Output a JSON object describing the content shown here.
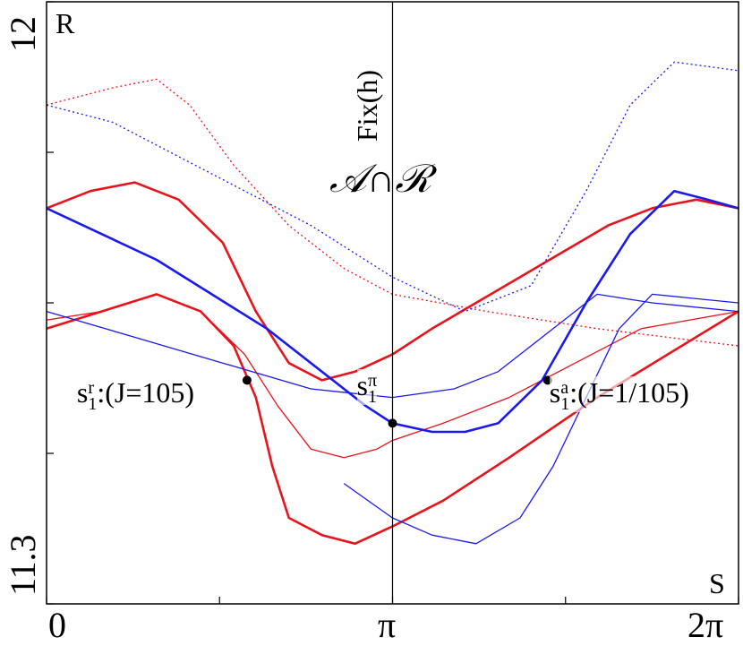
{
  "chart_data": {
    "type": "scatter",
    "xlim": [
      0,
      6.2832
    ],
    "ylim": [
      11.3,
      12.0
    ],
    "xticks": [
      0,
      3.1416,
      6.2832
    ],
    "x_tick_labels": [
      "0",
      "π",
      "2π"
    ],
    "yticks": [
      11.3,
      12.0
    ],
    "y_tick_labels": [
      "11.3",
      "12"
    ],
    "axis_corner_labels": {
      "y": "R",
      "x": "S"
    },
    "vertical_line": {
      "x": 3.1416,
      "label": "Fix(h)"
    },
    "center_label": "𝒜∩ℛ",
    "colors": {
      "repelling": "#e8141c",
      "attracting": "#1a1aee",
      "line": "#000000"
    },
    "series": [
      {
        "color": "#e8141c",
        "values_xy": [
          [
            0,
            11.76
          ],
          [
            0.4,
            11.78
          ],
          [
            0.8,
            11.79
          ],
          [
            1.2,
            11.77
          ],
          [
            1.6,
            11.72
          ],
          [
            1.9,
            11.64
          ],
          [
            2.2,
            11.58
          ],
          [
            2.5,
            11.56
          ],
          [
            2.8,
            11.57
          ],
          [
            3.14,
            11.59
          ],
          [
            3.5,
            11.62
          ],
          [
            3.9,
            11.65
          ],
          [
            4.3,
            11.68
          ],
          [
            4.7,
            11.71
          ],
          [
            5.1,
            11.74
          ],
          [
            5.5,
            11.76
          ],
          [
            5.9,
            11.77
          ],
          [
            6.28,
            11.76
          ]
        ]
      },
      {
        "color": "#e8141c",
        "values_xy": [
          [
            0,
            11.63
          ],
          [
            0.5,
            11.64
          ],
          [
            1.0,
            11.66
          ],
          [
            1.4,
            11.64
          ],
          [
            1.8,
            11.59
          ],
          [
            2.1,
            11.53
          ],
          [
            2.4,
            11.48
          ],
          [
            2.7,
            11.47
          ],
          [
            3.0,
            11.48
          ],
          [
            3.14,
            11.49
          ],
          [
            3.6,
            11.51
          ],
          [
            4.2,
            11.54
          ],
          [
            4.8,
            11.58
          ],
          [
            5.4,
            11.62
          ],
          [
            6.28,
            11.64
          ]
        ]
      },
      {
        "color": "#e8141c",
        "values_xy": [
          [
            0,
            11.62
          ],
          [
            0.5,
            11.64
          ],
          [
            1.0,
            11.66
          ],
          [
            1.4,
            11.64
          ],
          [
            1.7,
            11.6
          ],
          [
            1.9,
            11.54
          ],
          [
            2.05,
            11.46
          ],
          [
            2.2,
            11.4
          ],
          [
            2.5,
            11.38
          ],
          [
            2.8,
            11.37
          ],
          [
            3.14,
            11.39
          ],
          [
            3.6,
            11.42
          ],
          [
            4.2,
            11.47
          ],
          [
            5.0,
            11.54
          ],
          [
            6.28,
            11.64
          ]
        ]
      },
      {
        "color": "#e8141c",
        "values_xy": [
          [
            0,
            11.88
          ],
          [
            0.6,
            11.9
          ],
          [
            1.0,
            11.91
          ],
          [
            1.3,
            11.88
          ],
          [
            1.7,
            11.81
          ],
          [
            2.2,
            11.74
          ],
          [
            2.7,
            11.69
          ],
          [
            3.14,
            11.66
          ],
          [
            4.0,
            11.64
          ],
          [
            5.0,
            11.62
          ],
          [
            6.28,
            11.6
          ]
        ]
      },
      {
        "color": "#1a1aee",
        "values_xy": [
          [
            0,
            11.76
          ],
          [
            0.5,
            11.73
          ],
          [
            1.0,
            11.7
          ],
          [
            1.5,
            11.66
          ],
          [
            2.0,
            11.62
          ],
          [
            2.5,
            11.57
          ],
          [
            2.9,
            11.53
          ],
          [
            3.14,
            11.51
          ],
          [
            3.5,
            11.5
          ],
          [
            3.8,
            11.5
          ],
          [
            4.1,
            11.51
          ],
          [
            4.5,
            11.56
          ],
          [
            4.9,
            11.65
          ],
          [
            5.3,
            11.73
          ],
          [
            5.7,
            11.78
          ],
          [
            6.0,
            11.77
          ],
          [
            6.28,
            11.76
          ]
        ]
      },
      {
        "color": "#1a1aee",
        "values_xy": [
          [
            0,
            11.64
          ],
          [
            0.8,
            11.61
          ],
          [
            1.6,
            11.58
          ],
          [
            2.4,
            11.55
          ],
          [
            3.14,
            11.54
          ],
          [
            3.7,
            11.55
          ],
          [
            4.1,
            11.57
          ],
          [
            4.6,
            11.62
          ],
          [
            5.0,
            11.66
          ],
          [
            5.5,
            11.65
          ],
          [
            6.28,
            11.64
          ]
        ]
      },
      {
        "color": "#1a1aee",
        "values_xy": [
          [
            2.7,
            11.44
          ],
          [
            3.14,
            11.4
          ],
          [
            3.5,
            11.38
          ],
          [
            3.9,
            11.37
          ],
          [
            4.3,
            11.4
          ],
          [
            4.6,
            11.46
          ],
          [
            4.9,
            11.54
          ],
          [
            5.2,
            11.62
          ],
          [
            5.5,
            11.66
          ],
          [
            6.28,
            11.65
          ]
        ]
      },
      {
        "color": "#1a1aee",
        "values_xy": [
          [
            0,
            11.88
          ],
          [
            0.6,
            11.86
          ],
          [
            1.2,
            11.82
          ],
          [
            1.8,
            11.78
          ],
          [
            2.4,
            11.74
          ],
          [
            3.14,
            11.68
          ],
          [
            3.8,
            11.64
          ],
          [
            4.4,
            11.67
          ],
          [
            4.9,
            11.78
          ],
          [
            5.3,
            11.88
          ],
          [
            5.7,
            11.93
          ],
          [
            6.28,
            11.92
          ]
        ]
      }
    ],
    "points": [
      {
        "x": 1.82,
        "y": 11.56,
        "label": "s",
        "sub": "1",
        "sup": "r",
        "suffix": ":(J=105)"
      },
      {
        "x": 3.1416,
        "y": 11.51,
        "label": "s",
        "sub": "1",
        "sup": "π",
        "suffix": ""
      },
      {
        "x": 4.55,
        "y": 11.56,
        "label": "s",
        "sub": "1",
        "sup": "a",
        "suffix": ":(J=1/105)"
      }
    ]
  }
}
